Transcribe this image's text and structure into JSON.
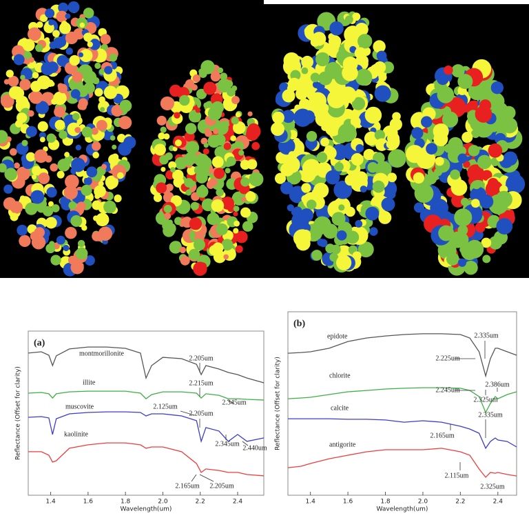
{
  "chart_data": [
    {
      "type": "line",
      "panel_label": "(a)",
      "x_label": "Wavelength(um)",
      "y_label": "Reflectance (Offset for clarity)",
      "xlim": [
        1.28,
        2.54
      ],
      "xticks": [
        1.4,
        1.6,
        1.8,
        {
          "value": 2,
          "label": "2.0"
        },
        2.2,
        2.4
      ],
      "ylim": [
        0,
        1
      ],
      "x": [
        1.28,
        1.35,
        1.39,
        1.41,
        1.43,
        1.5,
        1.6,
        1.7,
        1.8,
        1.88,
        1.91,
        1.94,
        2.0,
        2.1,
        2.18,
        2.205,
        2.23,
        2.3,
        2.35,
        2.4,
        2.45,
        2.54
      ],
      "series": [
        {
          "name": "montmorillonite",
          "color": "#555555",
          "values": [
            0.866,
            0.874,
            0.853,
            0.79,
            0.849,
            0.891,
            0.903,
            0.903,
            0.895,
            0.866,
            0.714,
            0.79,
            0.84,
            0.832,
            0.798,
            0.735,
            0.79,
            0.769,
            0.748,
            0.735,
            0.714,
            0.685
          ]
        },
        {
          "name": "illite",
          "color": "#3cb043",
          "values": [
            0.622,
            0.626,
            0.618,
            0.592,
            0.618,
            0.63,
            0.634,
            0.634,
            0.634,
            0.622,
            0.588,
            0.613,
            0.63,
            0.63,
            0.622,
            0.592,
            0.618,
            0.609,
            0.588,
            0.588,
            0.584,
            0.58
          ]
        },
        {
          "name": "muscovite",
          "color": "#3b3bd0",
          "values": [
            0.475,
            0.479,
            0.471,
            0.37,
            0.466,
            0.496,
            0.504,
            0.508,
            0.508,
            0.504,
            0.483,
            0.496,
            0.496,
            0.483,
            0.454,
            0.328,
            0.412,
            0.391,
            0.328,
            0.37,
            0.328,
            0.349
          ]
        },
        {
          "name": "kaolinite",
          "color": "#f03c3c",
          "values": [
            0.265,
            0.265,
            0.244,
            0.202,
            0.21,
            0.286,
            0.307,
            0.319,
            0.319,
            0.307,
            0.286,
            0.294,
            0.294,
            0.265,
            0.193,
            0.139,
            0.16,
            0.151,
            0.139,
            0.139,
            0.126,
            0.118
          ]
        }
      ],
      "annotations": [
        "2.205um",
        "2.215um",
        "2.345um",
        "2.125um",
        "2.205um",
        "2.345um",
        "2.440um",
        "2.165um",
        "2.205um"
      ]
    },
    {
      "type": "line",
      "panel_label": "(b)",
      "x_label": "Wavelength(um)",
      "y_label": "Reflectance (Offset for clarity)",
      "xlim": [
        1.28,
        2.5
      ],
      "xticks": [
        1.4,
        1.6,
        1.8,
        {
          "value": 2,
          "label": "2.0"
        },
        2.2,
        2.4
      ],
      "ylim": [
        0,
        1
      ],
      "x": [
        1.28,
        1.35,
        1.4,
        1.5,
        1.6,
        1.7,
        1.8,
        1.9,
        2.0,
        2.1,
        2.2,
        2.25,
        2.3,
        2.335,
        2.36,
        2.386,
        2.4,
        2.45,
        2.5
      ],
      "series": [
        {
          "name": "epidote",
          "color": "#555555",
          "values": [
            0.774,
            0.778,
            0.782,
            0.801,
            0.838,
            0.857,
            0.868,
            0.876,
            0.88,
            0.88,
            0.876,
            0.857,
            0.782,
            0.65,
            0.744,
            0.801,
            0.801,
            0.782,
            0.763
          ]
        },
        {
          "name": "chlorite",
          "color": "#3cb043",
          "values": [
            0.526,
            0.53,
            0.534,
            0.549,
            0.564,
            0.571,
            0.579,
            0.583,
            0.586,
            0.586,
            0.583,
            0.571,
            0.538,
            0.451,
            0.5,
            0.538,
            0.526,
            0.549,
            0.564
          ]
        },
        {
          "name": "calcite",
          "color": "#3b3bd0",
          "values": [
            0.417,
            0.417,
            0.417,
            0.417,
            0.414,
            0.414,
            0.41,
            0.398,
            0.406,
            0.398,
            0.376,
            0.361,
            0.338,
            0.256,
            0.293,
            0.312,
            0.301,
            0.293,
            0.263
          ]
        },
        {
          "name": "antigorite",
          "color": "#f03c3c",
          "values": [
            0.15,
            0.158,
            0.173,
            0.199,
            0.218,
            0.237,
            0.248,
            0.248,
            0.248,
            0.256,
            0.237,
            0.218,
            0.143,
            0.098,
            0.124,
            0.12,
            0.124,
            0.113,
            0.105
          ]
        }
      ],
      "annotations": [
        "2.335um",
        "2.225um",
        "2.386um",
        "2.245um",
        "2.325um",
        "2.335um",
        "2.165um",
        "2.115um",
        "2.325um"
      ]
    }
  ]
}
